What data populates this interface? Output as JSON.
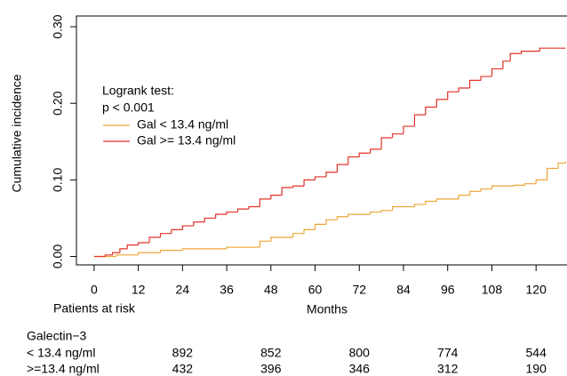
{
  "chart_data": {
    "type": "step",
    "xlabel": "Months",
    "ylabel": "Cumulative incidence",
    "xlim": [
      -4.8,
      128.4
    ],
    "ylim": [
      -0.011,
      0.314
    ],
    "xticks": [
      0,
      12,
      24,
      36,
      48,
      60,
      72,
      84,
      96,
      108,
      120
    ],
    "yticks": [
      {
        "value": 0,
        "label": "0.00"
      },
      {
        "value": 0.1,
        "label": "0.10"
      },
      {
        "value": 0.2,
        "label": "0.20"
      },
      {
        "value": 0.3,
        "label": "0.30"
      }
    ],
    "legend_title": [
      "Logrank test:",
      "p < 0.001"
    ],
    "series": [
      {
        "name": "Gal < 13.4 ng/ml",
        "color": "#eea536",
        "x": [
          0,
          6,
          12,
          18,
          24,
          36,
          45,
          48,
          54,
          57,
          60,
          63,
          66,
          69,
          75,
          78,
          81,
          87,
          90,
          93,
          99,
          102,
          105,
          108,
          114,
          117,
          120,
          123,
          126,
          128
        ],
        "values": [
          0,
          0.002,
          0.005,
          0.008,
          0.01,
          0.012,
          0.02,
          0.025,
          0.03,
          0.035,
          0.042,
          0.048,
          0.052,
          0.055,
          0.058,
          0.06,
          0.065,
          0.068,
          0.072,
          0.075,
          0.08,
          0.085,
          0.088,
          0.092,
          0.093,
          0.095,
          0.1,
          0.115,
          0.122,
          0.124
        ]
      },
      {
        "name": "Gal >= 13.4 ng/ml",
        "color": "#e2332b",
        "x": [
          0,
          3,
          5,
          7,
          9,
          12,
          15,
          18,
          21,
          24,
          27,
          30,
          33,
          36,
          39,
          42,
          45,
          48,
          51,
          54,
          57,
          60,
          63,
          66,
          69,
          72,
          75,
          78,
          81,
          84,
          87,
          90,
          93,
          96,
          99,
          102,
          105,
          108,
          111,
          113,
          116,
          121,
          128
        ],
        "values": [
          0,
          0.002,
          0.005,
          0.01,
          0.015,
          0.018,
          0.025,
          0.03,
          0.035,
          0.04,
          0.045,
          0.05,
          0.055,
          0.058,
          0.062,
          0.065,
          0.075,
          0.08,
          0.09,
          0.092,
          0.1,
          0.104,
          0.11,
          0.12,
          0.13,
          0.135,
          0.14,
          0.155,
          0.16,
          0.17,
          0.185,
          0.195,
          0.205,
          0.215,
          0.22,
          0.23,
          0.235,
          0.245,
          0.255,
          0.265,
          0.268,
          0.272,
          0.272
        ]
      }
    ]
  },
  "risk_table": {
    "title": "Patients at risk",
    "group": "Galectin−3",
    "rows": [
      {
        "label": "< 13.4 ng/ml",
        "values": [
          "892",
          "852",
          "800",
          "774",
          "544"
        ]
      },
      {
        "label": ">=13.4 ng/ml",
        "values": [
          "432",
          "396",
          "346",
          "312",
          "190"
        ]
      }
    ]
  }
}
